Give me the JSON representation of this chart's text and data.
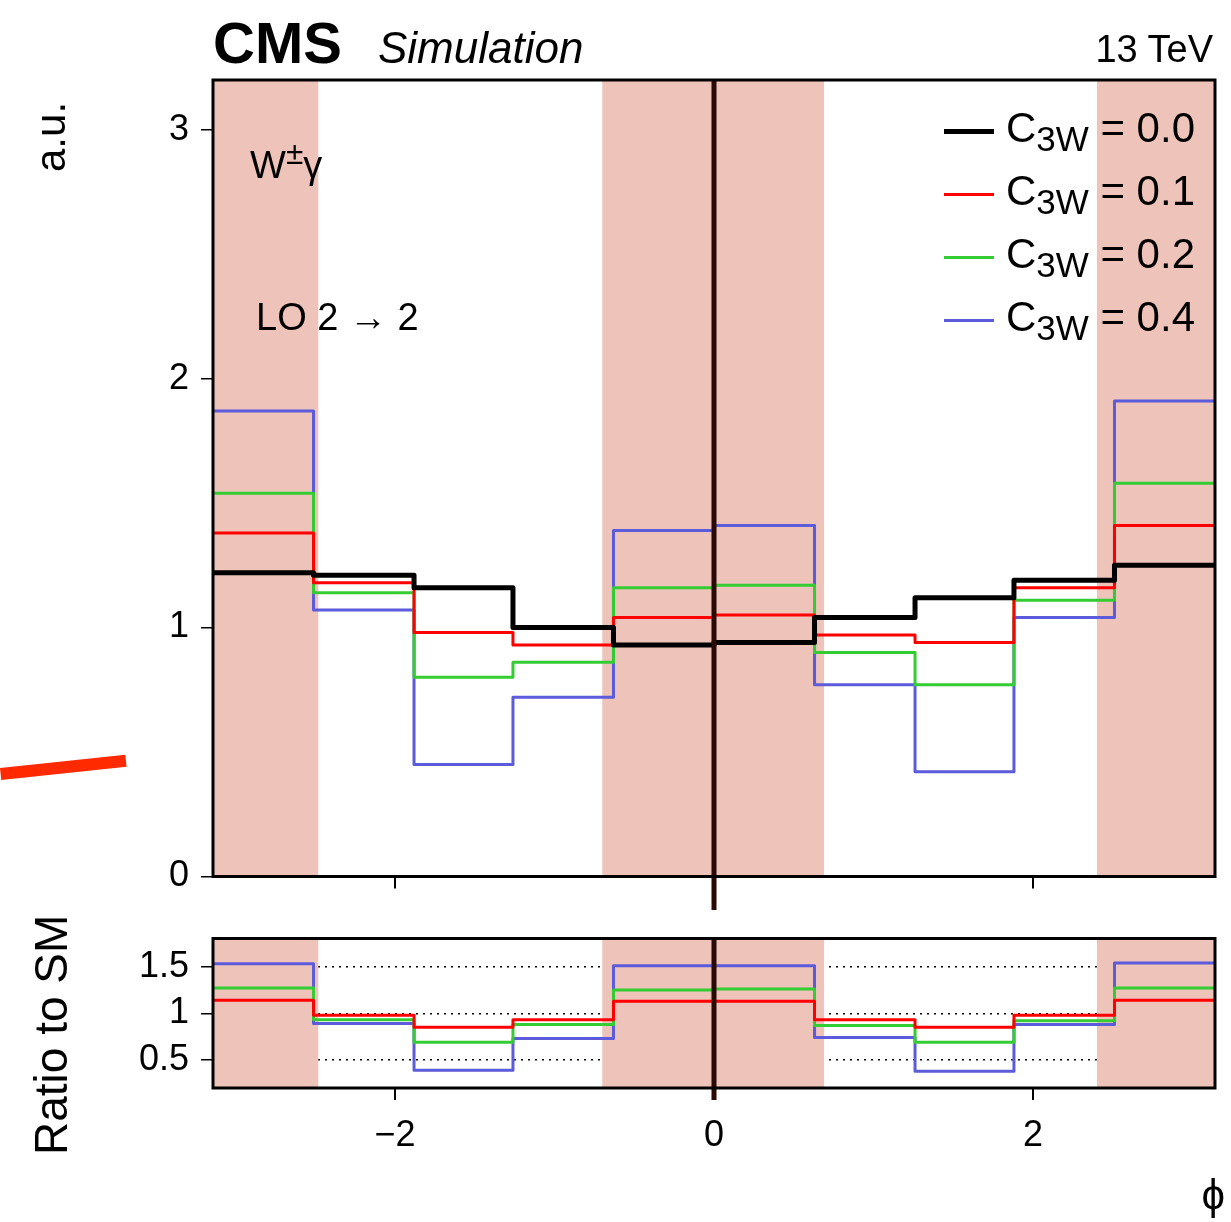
{
  "chart_data": [
    {
      "type": "histogram",
      "title": "CMS",
      "subtitle": "Simulation",
      "ylabel": "a.u.",
      "annotations": [
        "13 TeV",
        "W$^{±}$γ",
        "LO 2 → 2"
      ],
      "bins": [
        -3.14,
        -2.51,
        -1.88,
        -1.26,
        -0.63,
        0,
        0.63,
        1.26,
        1.88,
        2.51,
        3.14
      ],
      "series": [
        {
          "name": "C$_{3W}$ = 0.0",
          "color": "#000000",
          "values": [
            1.22,
            1.21,
            1.16,
            1.0,
            0.93,
            0.94,
            1.04,
            1.12,
            1.19,
            1.25
          ]
        },
        {
          "name": "C$_{3W}$ = 0.1",
          "color": "#ff0000",
          "values": [
            1.38,
            1.18,
            0.98,
            0.93,
            1.04,
            1.05,
            0.97,
            0.94,
            1.16,
            1.41
          ]
        },
        {
          "name": "C$_{3W}$ = 0.2",
          "color": "#33cc33",
          "values": [
            1.54,
            1.14,
            0.8,
            0.86,
            1.16,
            1.17,
            0.9,
            0.77,
            1.11,
            1.58
          ]
        },
        {
          "name": "C$_{3W}$ = 0.4",
          "color": "#5b5bdb",
          "values": [
            1.87,
            1.07,
            0.45,
            0.72,
            1.39,
            1.41,
            0.77,
            0.42,
            1.04,
            1.91
          ]
        }
      ],
      "xlim": [
        -3.14,
        3.14
      ],
      "xticks": [
        -2,
        0,
        2
      ],
      "ylim": [
        0,
        3.2
      ],
      "yticks": [
        0,
        1,
        2,
        3
      ],
      "tick_labels": "y",
      "legend": "top right",
      "grid": false,
      "bands": [
        {
          "axis": "x",
          "from": -3.14,
          "to": -2.48,
          "color": "#eec3b9"
        },
        {
          "axis": "x",
          "from": -0.7,
          "to": 0.69,
          "color": "#eec3b9"
        },
        {
          "axis": "x",
          "from": 2.4,
          "to": 3.14,
          "color": "#eec3b9"
        }
      ],
      "ref_lines": [
        {
          "axis": "x",
          "value": 0,
          "color": "#2a0a05"
        }
      ]
    },
    {
      "type": "histogram",
      "xlabel": "ϕ",
      "ylabel": "Ratio to SM",
      "bins": [
        -3.14,
        -2.51,
        -1.88,
        -1.26,
        -0.63,
        0,
        0.63,
        1.26,
        1.88,
        2.51,
        3.14
      ],
      "series": [
        {
          "color": "#ff0000",
          "values": [
            1.14,
            0.98,
            0.85,
            0.93,
            1.13,
            1.13,
            0.93,
            0.85,
            0.98,
            1.14
          ]
        },
        {
          "color": "#33cc33",
          "values": [
            1.27,
            0.93,
            0.69,
            0.88,
            1.25,
            1.26,
            0.87,
            0.69,
            0.92,
            1.27
          ]
        },
        {
          "color": "#5b5bdb",
          "values": [
            1.53,
            0.89,
            0.39,
            0.73,
            1.51,
            1.51,
            0.74,
            0.38,
            0.88,
            1.54
          ]
        }
      ],
      "xlim": [
        -3.14,
        3.14
      ],
      "xticks": [
        -2,
        0,
        2
      ],
      "ylim": [
        0.2,
        1.8
      ],
      "yticks": [
        0.5,
        1,
        1.5
      ],
      "grid": "y",
      "line_style": "solid",
      "bands": [
        {
          "axis": "x",
          "from": -3.14,
          "to": -2.48,
          "color": "#eec3b9"
        },
        {
          "axis": "x",
          "from": -0.7,
          "to": 0.69,
          "color": "#eec3b9"
        },
        {
          "axis": "x",
          "from": 2.4,
          "to": 3.14,
          "color": "#eec3b9"
        }
      ],
      "ref_lines": [
        {
          "axis": "x",
          "value": 0,
          "color": "#2a0a05"
        }
      ]
    }
  ]
}
